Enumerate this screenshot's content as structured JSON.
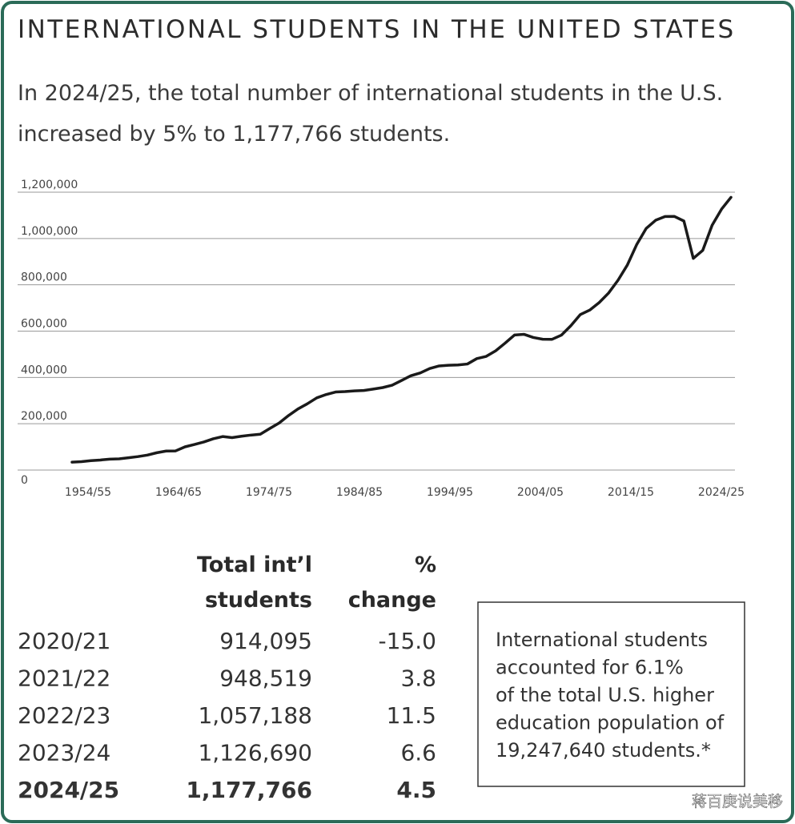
{
  "title": "INTERNATIONAL STUDENTS IN THE UNITED STATES",
  "subtitle": [
    "In 2024/25, the total number of international students in the U.S.",
    "increased by 5% to 1,177,766 students."
  ],
  "chart_data": {
    "type": "line",
    "categories": [
      "1954/55",
      null,
      null,
      null,
      null,
      null,
      null,
      null,
      null,
      null,
      "1964/65",
      null,
      null,
      null,
      null,
      null,
      null,
      null,
      null,
      null,
      "1974/75",
      null,
      null,
      null,
      null,
      null,
      null,
      null,
      null,
      null,
      "1984/85",
      null,
      null,
      null,
      null,
      null,
      null,
      null,
      null,
      null,
      "1994/95",
      null,
      null,
      null,
      null,
      null,
      null,
      null,
      null,
      null,
      "2004/05",
      null,
      null,
      null,
      null,
      null,
      null,
      null,
      null,
      null,
      "2014/15",
      null,
      null,
      null,
      null,
      null,
      null,
      null,
      null,
      null,
      "2024/25"
    ],
    "values": [
      34232,
      36494,
      40666,
      43391,
      47245,
      48486,
      53107,
      58086,
      64705,
      74814,
      82045,
      82709,
      100262,
      110315,
      121362,
      134959,
      144708,
      140126,
      146097,
      151066,
      154580,
      179344,
      203068,
      235509,
      263938,
      286343,
      311882,
      326299,
      336985,
      338894,
      342113,
      343777,
      349609,
      356187,
      366354,
      386851,
      407529,
      419585,
      438618,
      449749,
      452635,
      453787,
      457984,
      481280,
      490933,
      514723,
      547867,
      582996,
      586323,
      572509,
      565039,
      564766,
      582984,
      623805,
      671616,
      690923,
      723277,
      764495,
      819644,
      886052,
      974926,
      1043839,
      1078822,
      1094792,
      1095299,
      1075496,
      914095,
      948519,
      1057188,
      1126690,
      1177766
    ],
    "color": "#1a1a1a",
    "ylim": [
      0,
      1200000
    ],
    "yticks": [
      0,
      {
        "value": 200000,
        "label": "200,000"
      },
      {
        "value": 400000,
        "label": "400,000"
      },
      {
        "value": 600000,
        "label": "600,000"
      },
      {
        "value": 800000,
        "label": "800,000"
      },
      {
        "value": 1000000,
        "label": "1,000,000"
      },
      {
        "value": 1200000,
        "label": "1,200,000"
      }
    ],
    "grid": true
  },
  "table": {
    "columns": [
      [
        "Total int’l",
        "students"
      ],
      [
        "%",
        "change"
      ]
    ],
    "rows": [
      [
        "2020/21",
        "914,095",
        "-15.0"
      ],
      [
        "2021/22",
        "948,519",
        "3.8"
      ],
      [
        "2022/23",
        "1,057,188",
        "11.5"
      ],
      [
        "2023/24",
        "1,126,690",
        "6.6"
      ],
      [
        "2024/25",
        "1,177,766",
        "4.5"
      ]
    ]
  },
  "note": [
    "International students",
    "accounted for 6.1%",
    "of the total U.S. higher",
    "education population of",
    "19,247,640 students.*"
  ],
  "watermark": "蒋百庚说美移"
}
